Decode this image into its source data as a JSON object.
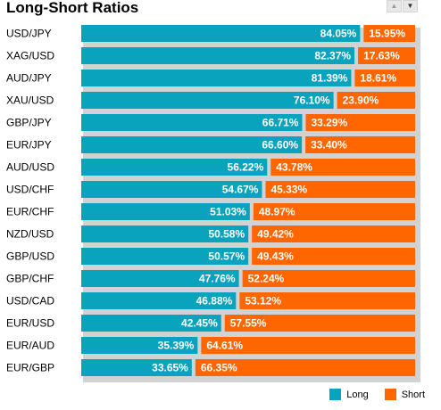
{
  "header": {
    "title": "Long-Short Ratios"
  },
  "colors": {
    "long": "#0aa3bd",
    "short": "#ff6600",
    "shadow": "#d2d2d2"
  },
  "chart_data": {
    "type": "bar",
    "stacked": true,
    "orientation": "horizontal",
    "categories": [
      "USD/JPY",
      "XAG/USD",
      "AUD/JPY",
      "XAU/USD",
      "GBP/JPY",
      "EUR/JPY",
      "AUD/USD",
      "USD/CHF",
      "EUR/CHF",
      "NZD/USD",
      "GBP/USD",
      "GBP/CHF",
      "USD/CAD",
      "EUR/USD",
      "EUR/AUD",
      "EUR/GBP"
    ],
    "series": [
      {
        "name": "Long",
        "values": [
          84.05,
          82.37,
          81.39,
          76.1,
          66.71,
          66.6,
          56.22,
          54.67,
          51.03,
          50.58,
          50.57,
          47.76,
          46.88,
          42.45,
          35.39,
          33.65
        ],
        "labels": [
          "84.05%",
          "82.37%",
          "81.39%",
          "76.10%",
          "66.71%",
          "66.60%",
          "56.22%",
          "54.67%",
          "51.03%",
          "50.58%",
          "50.57%",
          "47.76%",
          "46.88%",
          "42.45%",
          "35.39%",
          "33.65%"
        ]
      },
      {
        "name": "Short",
        "values": [
          15.95,
          17.63,
          18.61,
          23.9,
          33.29,
          33.4,
          43.78,
          45.33,
          48.97,
          49.42,
          49.43,
          52.24,
          53.12,
          57.55,
          64.61,
          66.35
        ],
        "labels": [
          "15.95%",
          "17.63%",
          "18.61%",
          "23.90%",
          "33.29%",
          "33.40%",
          "43.78%",
          "45.33%",
          "48.97%",
          "49.42%",
          "49.43%",
          "52.24%",
          "53.12%",
          "57.55%",
          "64.61%",
          "66.35%"
        ]
      }
    ],
    "xlim": [
      0,
      100
    ],
    "legend": "bottom-right"
  }
}
